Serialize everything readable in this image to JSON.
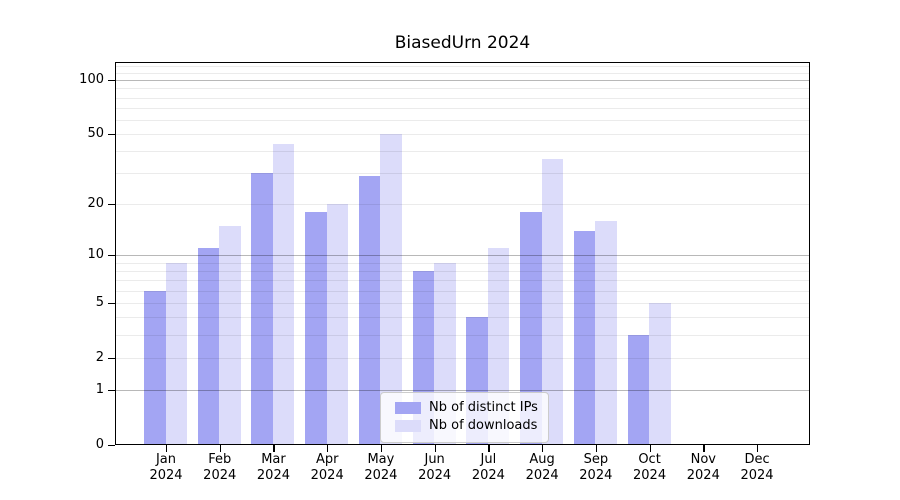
{
  "chart_data": {
    "type": "bar",
    "title": "BiasedUrn 2024",
    "categories": [
      "Jan",
      "Feb",
      "Mar",
      "Apr",
      "May",
      "Jun",
      "Jul",
      "Aug",
      "Sep",
      "Oct",
      "Nov",
      "Dec"
    ],
    "year": "2024",
    "series": [
      {
        "name": "Nb of distinct IPs",
        "color": "#a3a5f3",
        "values": [
          6,
          11,
          30,
          18,
          29,
          8,
          4,
          18,
          14,
          3,
          0,
          0
        ]
      },
      {
        "name": "Nb of downloads",
        "color": "#dcdcfa",
        "values": [
          9,
          15,
          44,
          20,
          50,
          9,
          11,
          36,
          16,
          5,
          0,
          0
        ]
      }
    ],
    "xlabel": "",
    "ylabel": "",
    "y_scale": "log10(value+1)",
    "ylim": [
      0,
      126
    ],
    "y_ticks": [
      0,
      1,
      2,
      5,
      10,
      20,
      50,
      100
    ],
    "y_major_gridlines": [
      1,
      10,
      100
    ],
    "y_minor_gridlines": [
      2,
      3,
      4,
      5,
      6,
      7,
      8,
      9,
      20,
      30,
      40,
      50,
      60,
      70,
      80,
      90,
      110,
      120
    ],
    "grid": "horizontal",
    "legend_position": "lower center"
  }
}
